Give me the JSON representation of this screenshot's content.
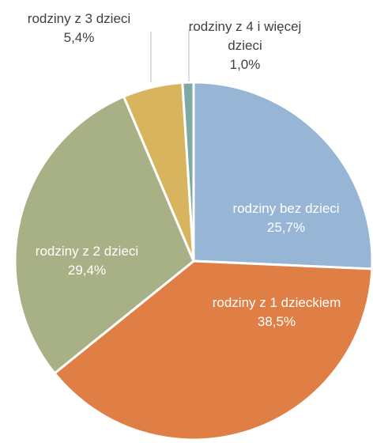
{
  "chart_data": {
    "type": "pie",
    "categories": [
      "rodziny bez dzieci",
      "rodziny z 1 dzieckiem",
      "rodziny z 2 dzieci",
      "rodziny z 3 dzieci",
      "rodziny z 4 i więcej dzieci"
    ],
    "values": [
      25.7,
      38.5,
      29.4,
      5.4,
      1.0
    ],
    "value_labels": [
      "25,7%",
      "38,5%",
      "29,4%",
      "5,4%",
      "1,0%"
    ],
    "colors": [
      "#97b6d6",
      "#e07f45",
      "#a8b185",
      "#d9b45e",
      "#7fa9a5"
    ]
  }
}
